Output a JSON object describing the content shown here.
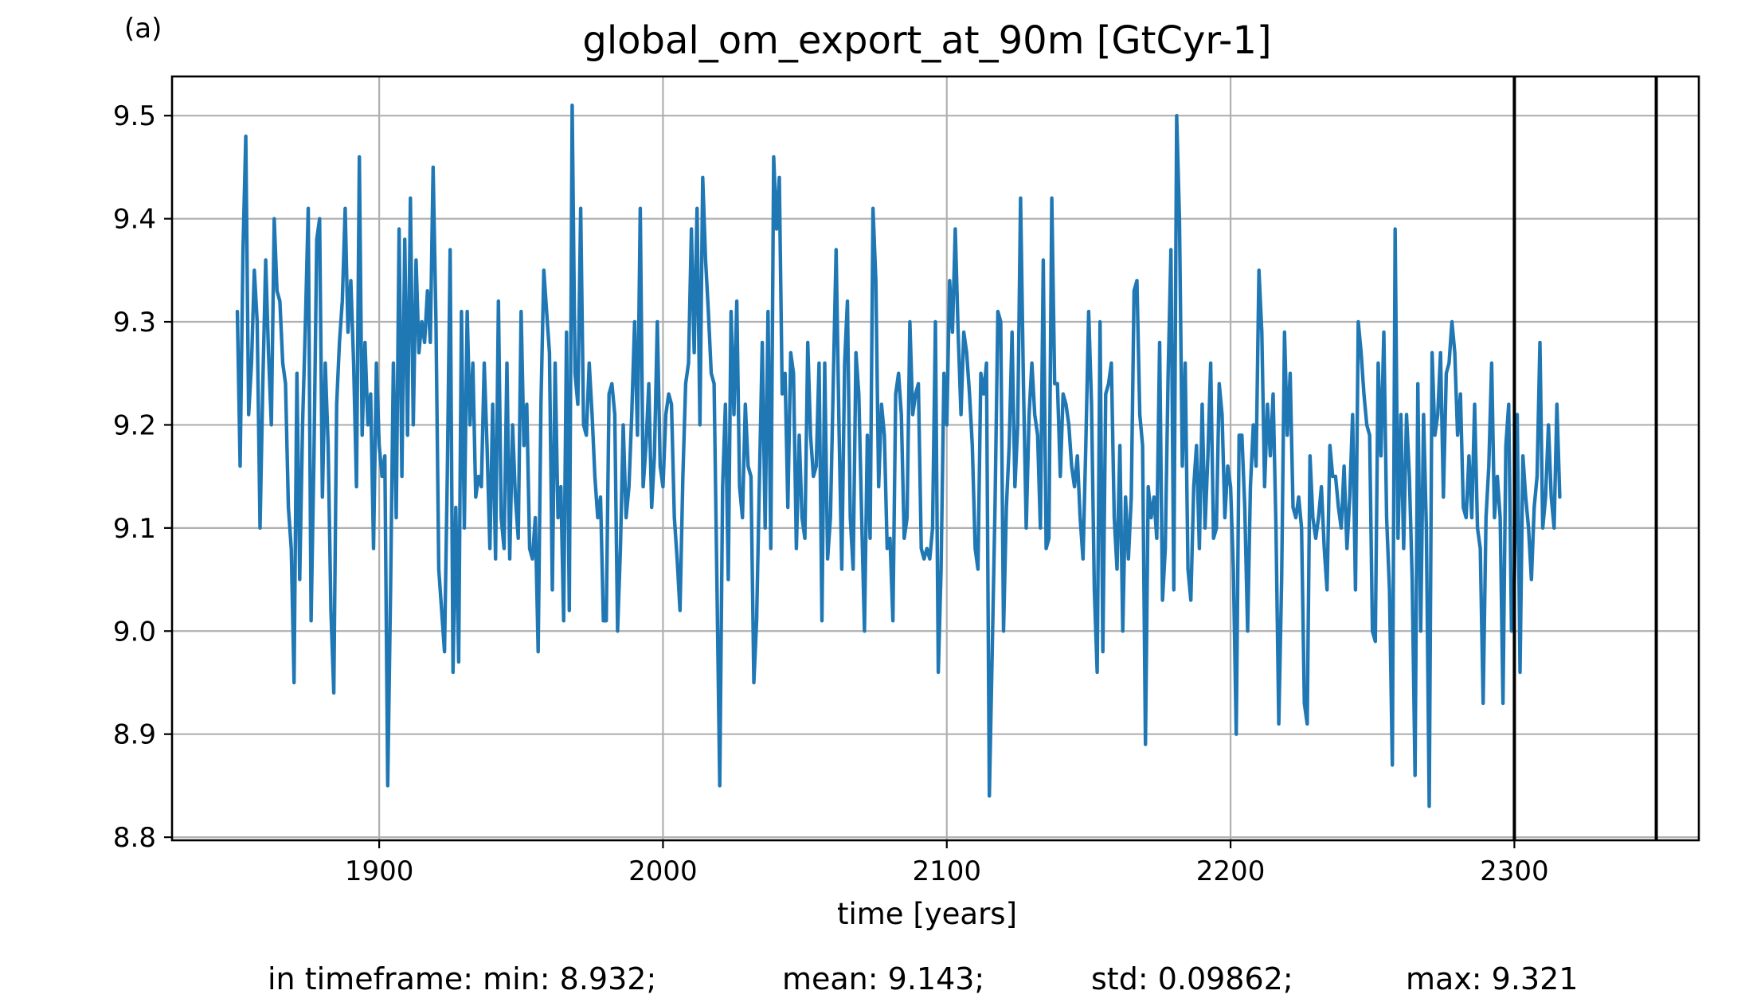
{
  "panel_label": "(a)",
  "stats": {
    "min": "in timeframe: min: 8.932;",
    "mean": "mean: 9.143;",
    "std": "std: 0.09862;",
    "max": "max: 9.321"
  },
  "colors": {
    "line": "#1f77b4",
    "grid": "#b0b0b0",
    "marker_lines": "#000000"
  },
  "chart_data": {
    "type": "line",
    "title": "global_om_export_at_90m [GtCyr-1]",
    "xlabel": "time [years]",
    "ylabel": "",
    "xlim": [
      1827,
      2365
    ],
    "ylim": [
      8.797,
      9.538
    ],
    "xticks": [
      1900,
      2000,
      2100,
      2200,
      2300
    ],
    "xtick_labels": [
      "1900",
      "2000",
      "2100",
      "2200",
      "2300"
    ],
    "yticks": [
      8.8,
      8.9,
      9.0,
      9.1,
      9.2,
      9.3,
      9.4,
      9.5
    ],
    "ytick_labels": [
      "8.8",
      "8.9",
      "9.0",
      "9.1",
      "9.2",
      "9.3",
      "9.4",
      "9.5"
    ],
    "grid": true,
    "vertical_lines": [
      2300,
      2350
    ],
    "x_start": 1850,
    "x_step": 1,
    "series": [
      {
        "values": [
          9.31,
          9.16,
          9.37,
          9.48,
          9.21,
          9.26,
          9.35,
          9.3,
          9.1,
          9.24,
          9.36,
          9.27,
          9.2,
          9.4,
          9.33,
          9.32,
          9.26,
          9.24,
          9.12,
          9.08,
          8.95,
          9.25,
          9.05,
          9.2,
          9.3,
          9.41,
          9.01,
          9.17,
          9.38,
          9.4,
          9.13,
          9.26,
          9.18,
          9.02,
          8.94,
          9.22,
          9.28,
          9.32,
          9.41,
          9.29,
          9.34,
          9.26,
          9.14,
          9.46,
          9.19,
          9.28,
          9.2,
          9.23,
          9.08,
          9.26,
          9.18,
          9.15,
          9.17,
          8.85,
          9.04,
          9.26,
          9.11,
          9.39,
          9.15,
          9.38,
          9.19,
          9.42,
          9.2,
          9.36,
          9.27,
          9.3,
          9.28,
          9.33,
          9.28,
          9.45,
          9.3,
          9.06,
          9.02,
          8.98,
          9.15,
          9.37,
          8.96,
          9.12,
          8.97,
          9.31,
          9.1,
          9.31,
          9.2,
          9.26,
          9.13,
          9.15,
          9.14,
          9.26,
          9.18,
          9.08,
          9.22,
          9.07,
          9.32,
          9.11,
          9.08,
          9.26,
          9.07,
          9.2,
          9.13,
          9.09,
          9.31,
          9.18,
          9.22,
          9.08,
          9.07,
          9.11,
          8.98,
          9.22,
          9.35,
          9.31,
          9.27,
          9.04,
          9.26,
          9.11,
          9.14,
          9.01,
          9.29,
          9.02,
          9.51,
          9.25,
          9.22,
          9.41,
          9.2,
          9.19,
          9.26,
          9.21,
          9.15,
          9.11,
          9.13,
          9.01,
          9.01,
          9.23,
          9.24,
          9.21,
          9.0,
          9.08,
          9.2,
          9.11,
          9.14,
          9.21,
          9.3,
          9.19,
          9.41,
          9.14,
          9.18,
          9.24,
          9.12,
          9.17,
          9.3,
          9.16,
          9.14,
          9.21,
          9.23,
          9.22,
          9.11,
          9.07,
          9.02,
          9.15,
          9.24,
          9.26,
          9.39,
          9.27,
          9.41,
          9.2,
          9.44,
          9.36,
          9.31,
          9.25,
          9.24,
          9.05,
          8.85,
          9.14,
          9.22,
          9.05,
          9.31,
          9.21,
          9.32,
          9.14,
          9.11,
          9.22,
          9.16,
          9.15,
          8.95,
          9.01,
          9.15,
          9.28,
          9.1,
          9.31,
          9.08,
          9.46,
          9.39,
          9.44,
          9.23,
          9.25,
          9.12,
          9.27,
          9.25,
          9.08,
          9.19,
          9.11,
          9.09,
          9.28,
          9.19,
          9.15,
          9.16,
          9.26,
          9.01,
          9.26,
          9.07,
          9.11,
          9.24,
          9.37,
          9.2,
          9.06,
          9.26,
          9.32,
          9.11,
          9.06,
          9.27,
          9.23,
          9.11,
          9.0,
          9.19,
          9.09,
          9.41,
          9.34,
          9.14,
          9.22,
          9.19,
          9.08,
          9.09,
          9.01,
          9.23,
          9.25,
          9.21,
          9.09,
          9.11,
          9.3,
          9.21,
          9.23,
          9.24,
          9.08,
          9.07,
          9.08,
          9.07,
          9.1,
          9.3,
          8.96,
          9.06,
          9.25,
          9.2,
          9.34,
          9.29,
          9.39,
          9.29,
          9.21,
          9.29,
          9.27,
          9.23,
          9.18,
          9.08,
          9.06,
          9.25,
          9.23,
          9.26,
          8.84,
          8.98,
          9.12,
          9.31,
          9.3,
          9.0,
          9.12,
          9.18,
          9.29,
          9.14,
          9.2,
          9.42,
          9.24,
          9.1,
          9.21,
          9.26,
          9.21,
          9.19,
          9.1,
          9.36,
          9.08,
          9.09,
          9.42,
          9.24,
          9.24,
          9.15,
          9.23,
          9.22,
          9.2,
          9.16,
          9.14,
          9.17,
          9.11,
          9.07,
          9.18,
          9.31,
          9.22,
          9.04,
          8.96,
          9.3,
          8.98,
          9.23,
          9.24,
          9.26,
          9.11,
          9.06,
          9.18,
          9.0,
          9.13,
          9.07,
          9.13,
          9.33,
          9.34,
          9.21,
          9.18,
          8.89,
          9.14,
          9.11,
          9.13,
          9.09,
          9.28,
          9.03,
          9.08,
          9.25,
          9.37,
          9.04,
          9.5,
          9.4,
          9.16,
          9.26,
          9.06,
          9.03,
          9.14,
          9.18,
          9.08,
          9.22,
          9.1,
          9.17,
          9.26,
          9.09,
          9.1,
          9.24,
          9.21,
          9.11,
          9.16,
          9.14,
          9.06,
          8.9,
          9.19,
          9.19,
          9.12,
          9.0,
          9.14,
          9.2,
          9.16,
          9.35,
          9.29,
          9.14,
          9.22,
          9.17,
          9.23,
          9.1,
          8.91,
          9.05,
          9.29,
          9.19,
          9.25,
          9.12,
          9.11,
          9.13,
          9.1,
          8.93,
          8.91,
          9.17,
          9.11,
          9.09,
          9.11,
          9.14,
          9.08,
          9.04,
          9.18,
          9.15,
          9.15,
          9.12,
          9.1,
          9.16,
          9.08,
          9.13,
          9.21,
          9.04,
          9.3,
          9.27,
          9.23,
          9.2,
          9.19,
          9.0,
          8.99,
          9.26,
          9.17,
          9.29,
          9.11,
          9.04,
          8.87,
          9.39,
          9.09,
          9.21,
          9.08,
          9.21,
          9.15,
          9.05,
          8.86,
          9.24,
          9.0,
          9.21,
          9.1,
          8.83,
          9.27,
          9.19,
          9.21,
          9.27,
          9.13,
          9.25,
          9.26,
          9.3,
          9.27,
          9.19,
          9.23,
          9.12,
          9.11,
          9.17,
          9.11,
          9.22,
          9.1,
          9.08,
          8.93,
          9.11,
          9.16,
          9.26,
          9.11,
          9.15,
          9.11,
          8.93,
          9.18,
          9.22,
          9.0,
          9.05,
          9.21,
          8.96,
          9.17,
          9.13,
          9.1,
          9.05,
          9.12,
          9.15,
          9.28,
          9.1,
          9.13,
          9.2,
          9.13,
          9.1,
          9.22,
          9.13
        ]
      }
    ]
  }
}
